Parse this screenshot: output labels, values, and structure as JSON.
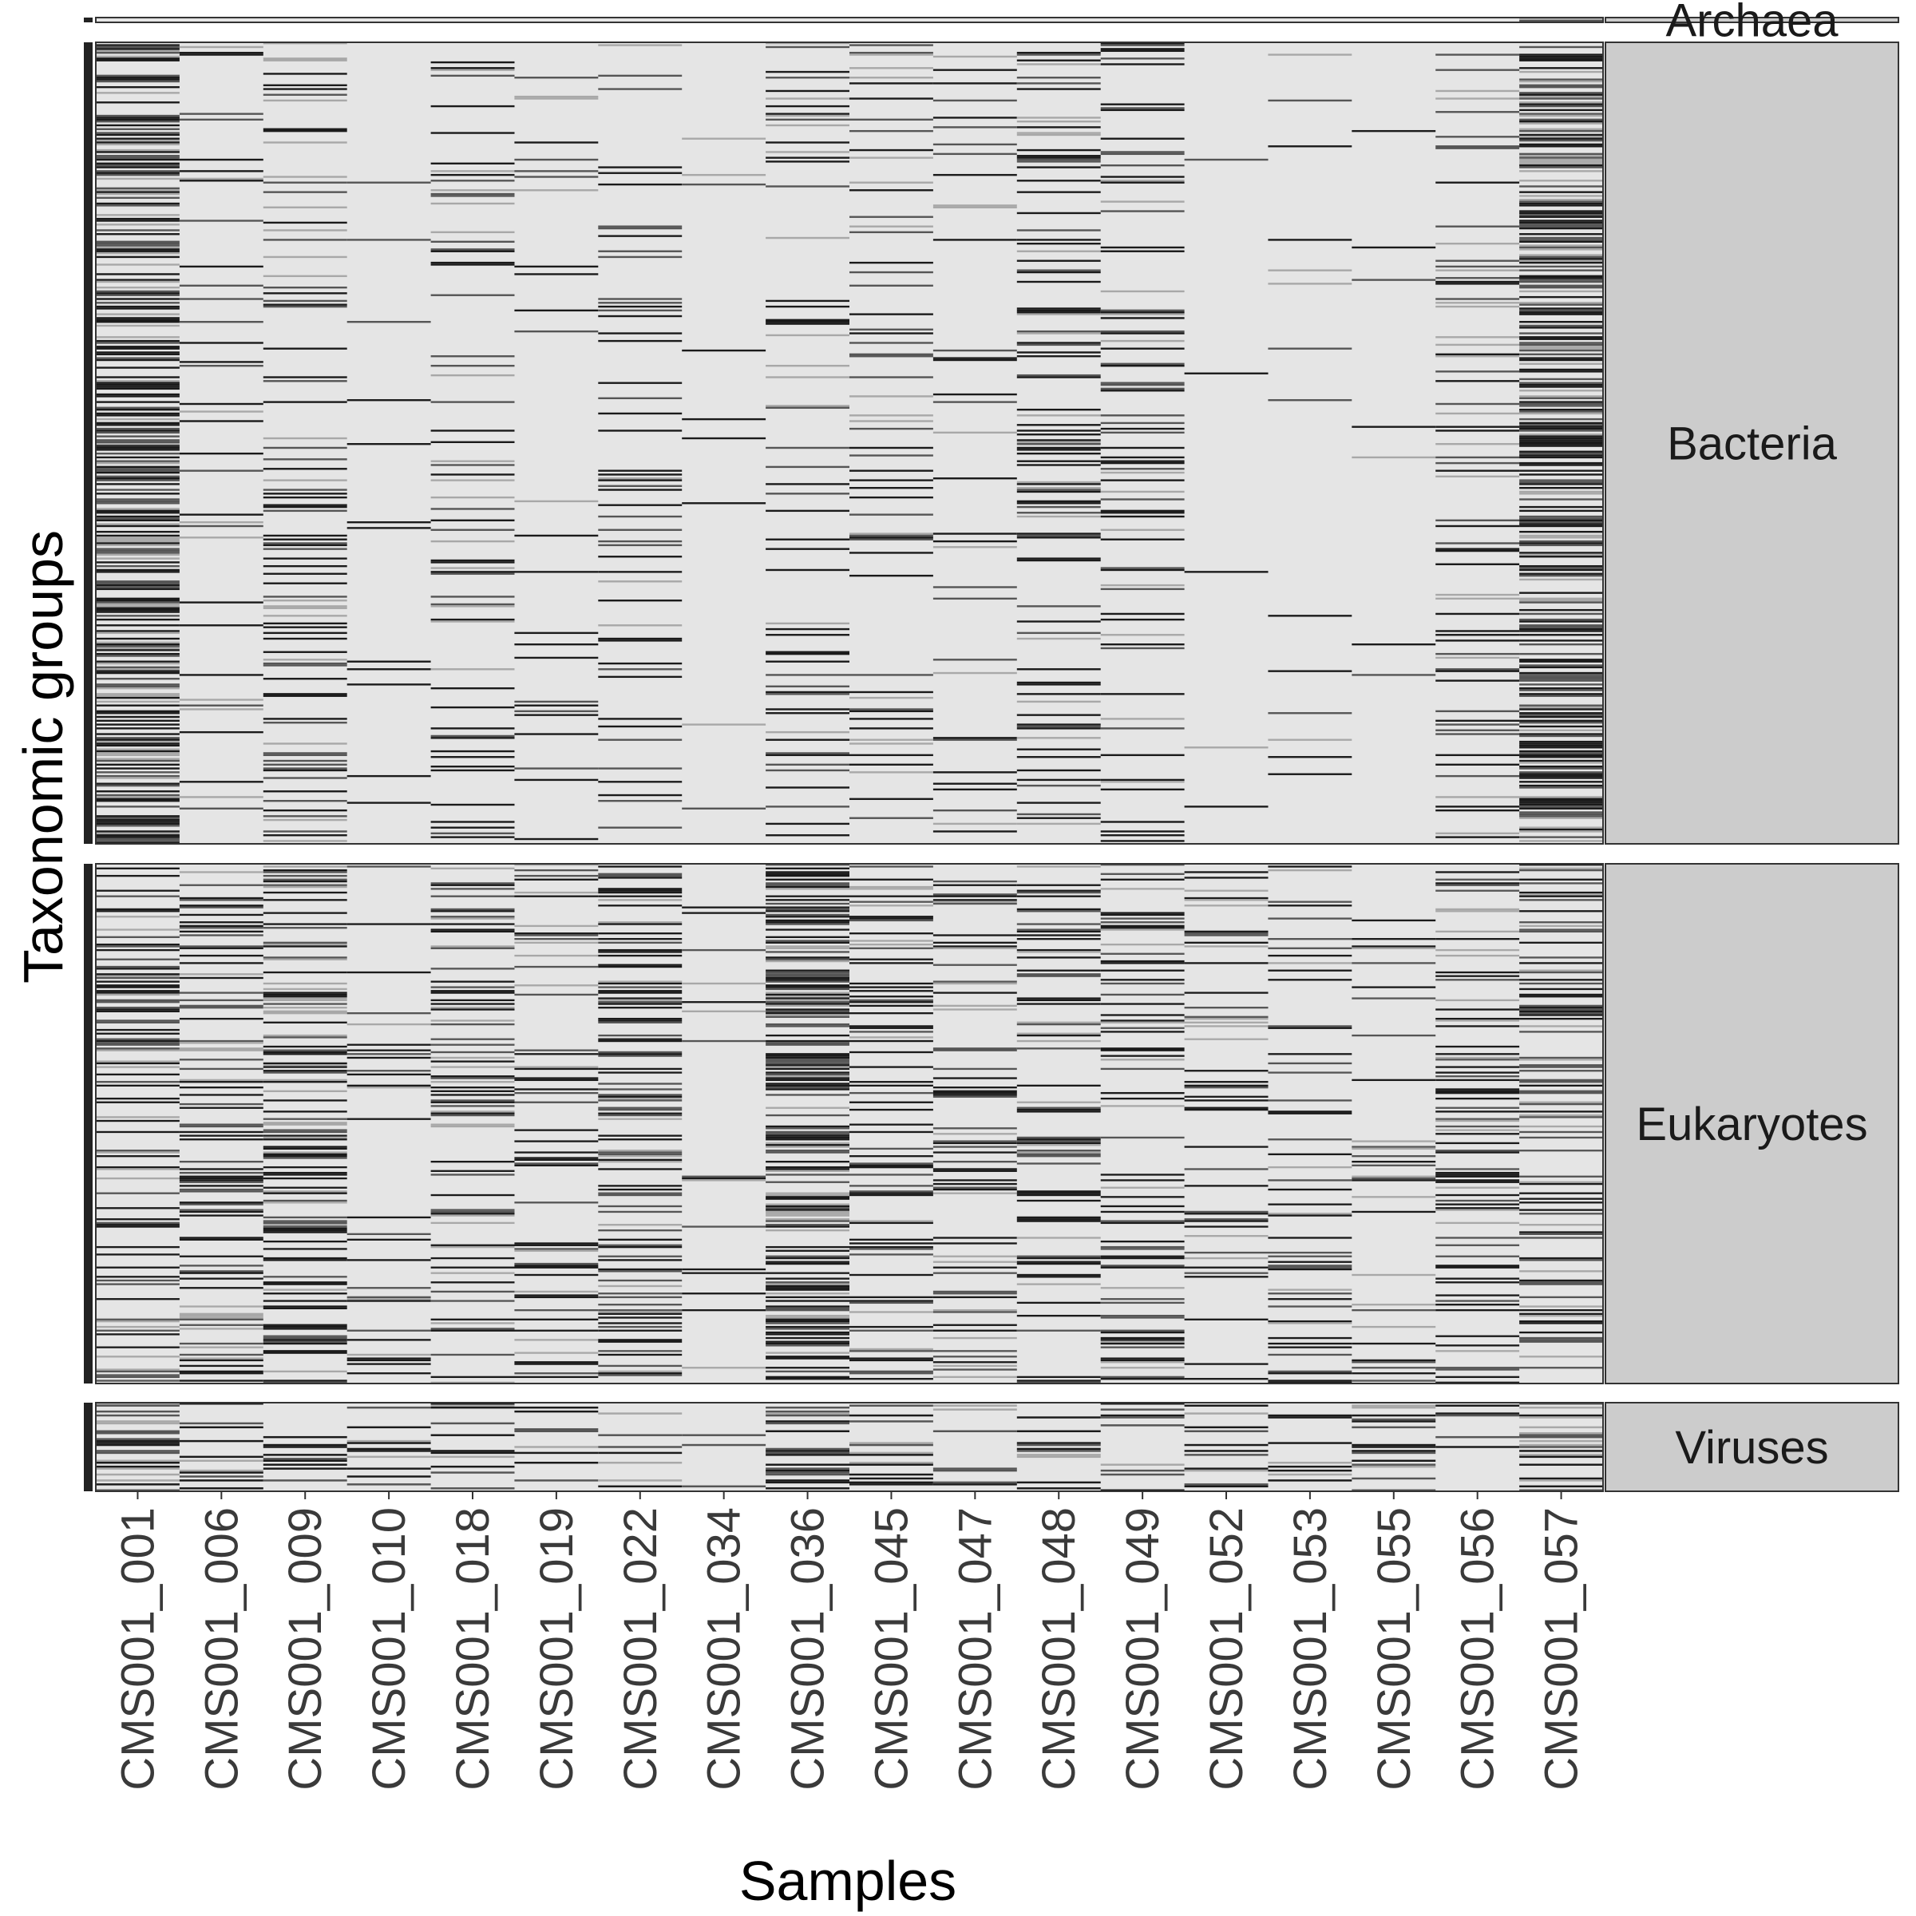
{
  "chart_data": {
    "type": "heatmap",
    "title": "",
    "xlabel": "Samples",
    "ylabel": "Taxonomic groups",
    "samples": [
      "CMS001_001",
      "CMS001_006",
      "CMS001_009",
      "CMS001_010",
      "CMS001_018",
      "CMS001_019",
      "CMS001_022",
      "CMS001_034",
      "CMS001_036",
      "CMS001_045",
      "CMS001_047",
      "CMS001_048",
      "CMS001_049",
      "CMS001_052",
      "CMS001_053",
      "CMS001_055",
      "CMS001_056",
      "CMS001_057"
    ],
    "facets": [
      {
        "label": "Archaea",
        "rows": 2,
        "density": [
          0,
          0,
          0,
          0,
          0,
          0,
          0,
          0,
          0,
          0,
          0,
          0,
          0,
          0,
          0,
          0,
          0,
          0.8
        ]
      },
      {
        "label": "Bacteria",
        "rows": 420,
        "density": [
          0.55,
          0.1,
          0.2,
          0.03,
          0.14,
          0.06,
          0.12,
          0.02,
          0.12,
          0.16,
          0.1,
          0.22,
          0.16,
          0.02,
          0.05,
          0.03,
          0.12,
          0.6
        ]
      },
      {
        "label": "Eukaryotes",
        "rows": 280,
        "density": [
          0.28,
          0.28,
          0.32,
          0.12,
          0.26,
          0.18,
          0.3,
          0.08,
          0.55,
          0.24,
          0.22,
          0.22,
          0.2,
          0.18,
          0.16,
          0.12,
          0.26,
          0.24
        ]
      },
      {
        "label": "Viruses",
        "rows": 45,
        "density": [
          0.4,
          0.25,
          0.25,
          0.15,
          0.25,
          0.18,
          0.25,
          0.12,
          0.25,
          0.25,
          0.18,
          0.25,
          0.25,
          0.18,
          0.25,
          0.18,
          0.18,
          0.4
        ]
      }
    ],
    "colors": {
      "background": "#e5e5e5",
      "present": "#1a1a1a",
      "strip": "#cccccc",
      "border": "#333333"
    }
  }
}
